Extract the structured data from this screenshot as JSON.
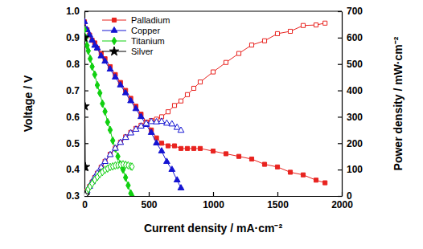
{
  "chart_data": {
    "type": "line",
    "x_label": "Current density / mA·cm⁻²",
    "y_label": "Voltage / V",
    "y2_label": "Power density / mW·cm⁻²",
    "xlim": [
      0,
      2000
    ],
    "xticks": [
      0,
      500,
      1000,
      1500,
      2000
    ],
    "ylim": [
      0.3,
      1.0
    ],
    "yticks": [
      0.3,
      0.4,
      0.5,
      0.6,
      0.7,
      0.8,
      0.9,
      {
        "value": 1,
        "label": "1.0"
      }
    ],
    "y2lim": [
      0,
      700
    ],
    "y2ticks": [
      0,
      100,
      200,
      300,
      400,
      500,
      600,
      700
    ],
    "legend": "top-left",
    "series": [
      {
        "name": "Palladium",
        "color": "#e8231f",
        "marker": "square",
        "x": [
          0,
          20,
          40,
          60,
          80,
          100,
          130,
          160,
          200,
          240,
          280,
          320,
          360,
          400,
          440,
          480,
          520,
          560,
          600,
          650,
          700,
          750,
          800,
          850,
          900,
          1000,
          1100,
          1200,
          1300,
          1400,
          1500,
          1600,
          1700,
          1800,
          1870
        ],
        "values": [
          0.96,
          0.93,
          0.91,
          0.89,
          0.88,
          0.86,
          0.84,
          0.82,
          0.79,
          0.76,
          0.73,
          0.7,
          0.67,
          0.64,
          0.61,
          0.58,
          0.55,
          0.52,
          0.5,
          0.49,
          0.49,
          0.48,
          0.48,
          0.48,
          0.48,
          0.47,
          0.46,
          0.45,
          0.44,
          0.42,
          0.41,
          0.39,
          0.38,
          0.36,
          0.35
        ]
      },
      {
        "name": "Copper",
        "color": "#1414d2",
        "marker": "triangle",
        "x": [
          0,
          20,
          40,
          60,
          80,
          100,
          130,
          160,
          200,
          240,
          280,
          320,
          360,
          400,
          440,
          480,
          520,
          560,
          600,
          640,
          680,
          720,
          750
        ],
        "values": [
          0.96,
          0.93,
          0.91,
          0.89,
          0.87,
          0.86,
          0.83,
          0.81,
          0.78,
          0.75,
          0.72,
          0.69,
          0.66,
          0.63,
          0.6,
          0.57,
          0.54,
          0.5,
          0.47,
          0.43,
          0.4,
          0.36,
          0.33
        ]
      },
      {
        "name": "Titanium",
        "color": "#10d010",
        "marker": "diamond",
        "x": [
          0,
          10,
          20,
          30,
          45,
          60,
          80,
          100,
          120,
          140,
          160,
          180,
          200,
          220,
          240,
          260,
          280,
          300,
          320,
          340,
          360,
          370
        ],
        "values": [
          0.93,
          0.9,
          0.87,
          0.85,
          0.82,
          0.79,
          0.76,
          0.72,
          0.69,
          0.65,
          0.62,
          0.58,
          0.55,
          0.51,
          0.48,
          0.45,
          0.42,
          0.4,
          0.37,
          0.34,
          0.31,
          0.3
        ]
      },
      {
        "name": "Silver",
        "color": "#000000",
        "marker": "star",
        "x": [
          0,
          3,
          6
        ],
        "values": [
          0.9,
          0.64,
          0.41
        ]
      },
      {
        "color": "#e8231f",
        "marker": "square-open",
        "axis": "y2",
        "x": [
          0,
          20,
          40,
          60,
          80,
          100,
          130,
          160,
          200,
          240,
          280,
          320,
          360,
          400,
          440,
          480,
          520,
          560,
          600,
          650,
          700,
          750,
          800,
          850,
          900,
          1000,
          1100,
          1200,
          1300,
          1400,
          1500,
          1600,
          1700,
          1800,
          1870
        ],
        "values": [
          0,
          19,
          36,
          53,
          70,
          86,
          109,
          131,
          158,
          182,
          204,
          224,
          241,
          256,
          268,
          278,
          286,
          291,
          300,
          319,
          343,
          360,
          384,
          408,
          432,
          470,
          506,
          540,
          572,
          588,
          615,
          624,
          646,
          648,
          655
        ]
      },
      {
        "color": "#1414d2",
        "marker": "triangle-open",
        "axis": "y2",
        "x": [
          0,
          20,
          40,
          60,
          80,
          100,
          130,
          160,
          200,
          240,
          280,
          320,
          360,
          400,
          440,
          480,
          520,
          560,
          600,
          640,
          680,
          720,
          750
        ],
        "values": [
          0,
          19,
          36,
          53,
          70,
          86,
          108,
          130,
          156,
          180,
          202,
          221,
          238,
          252,
          264,
          274,
          281,
          280,
          282,
          275,
          272,
          259,
          248
        ]
      },
      {
        "color": "#10d010",
        "marker": "diamond-open",
        "axis": "y2",
        "x": [
          0,
          10,
          20,
          30,
          45,
          60,
          80,
          100,
          120,
          140,
          160,
          180,
          200,
          220,
          240,
          260,
          280,
          300,
          320,
          340,
          360,
          370
        ],
        "values": [
          0,
          9,
          17,
          26,
          37,
          47,
          61,
          72,
          83,
          91,
          99,
          104,
          110,
          112,
          115,
          117,
          118,
          120,
          118,
          116,
          112,
          111
        ]
      },
      {
        "color": "#000000",
        "marker": "star-open",
        "axis": "y2",
        "x": [
          0,
          3,
          6
        ],
        "values": [
          0,
          2,
          2
        ]
      }
    ]
  }
}
